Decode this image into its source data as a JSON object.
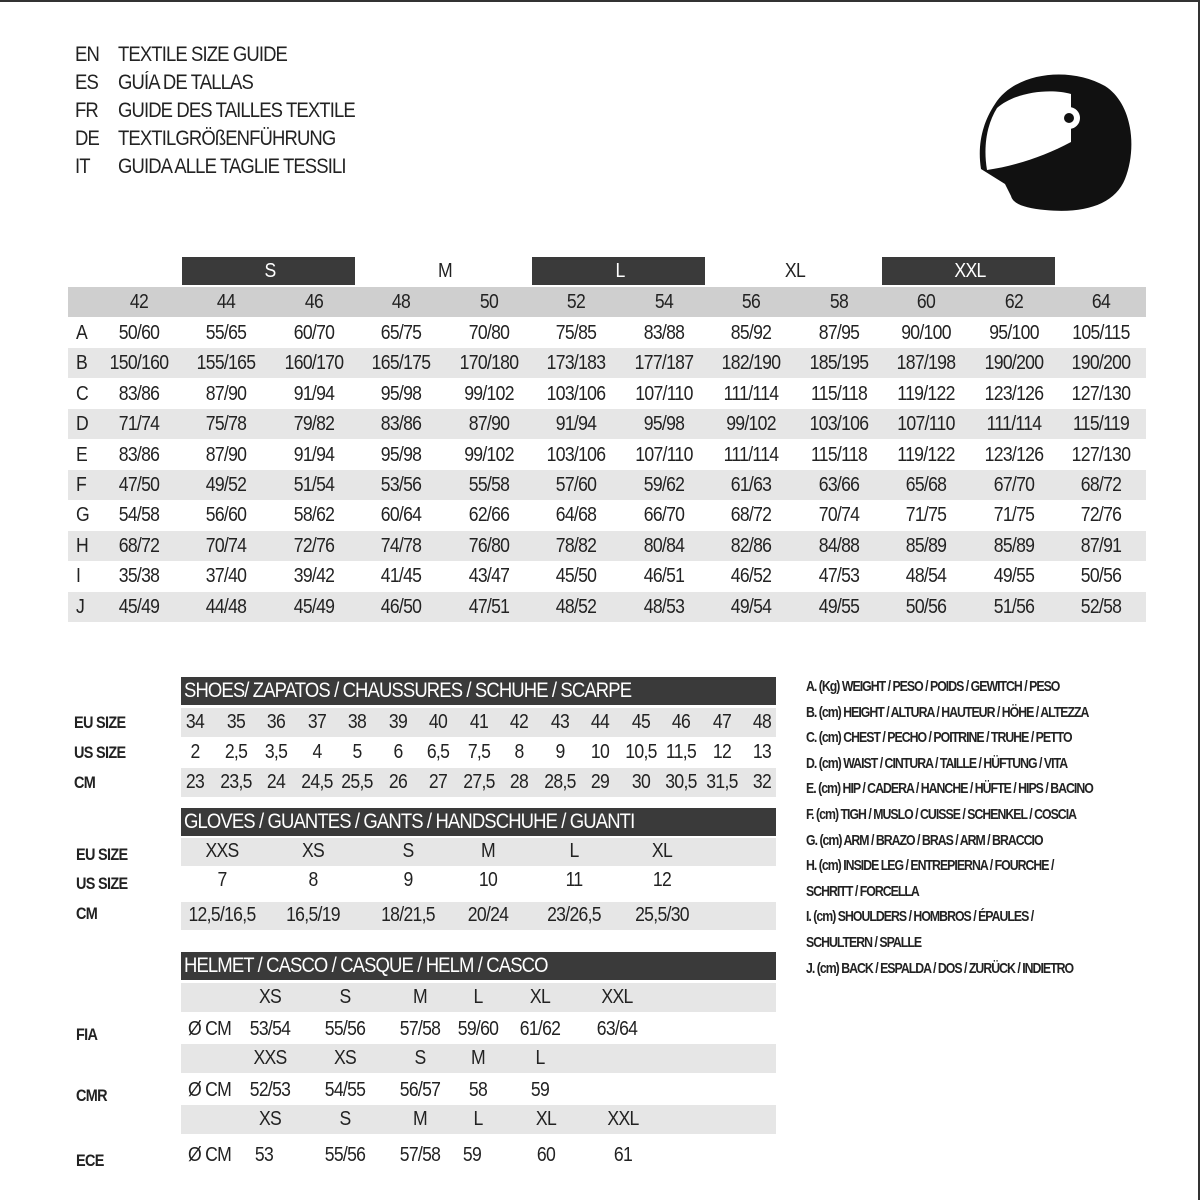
{
  "titles": [
    {
      "lang": "EN",
      "text": "TEXTILE SIZE GUIDE"
    },
    {
      "lang": "ES",
      "text": "GUÍA DE TALLAS"
    },
    {
      "lang": "FR",
      "text": "GUIDE DES TAILLES TEXTILE"
    },
    {
      "lang": "DE",
      "text": "TEXTILGRÖßENFÜHRUNG"
    },
    {
      "lang": "IT",
      "text": "GUIDA ALLE TAGLIE TESSILI"
    }
  ],
  "icon": "helmet-icon",
  "textile": {
    "size_groups": [
      {
        "label": "S",
        "dark": true
      },
      {
        "label": "M",
        "dark": false
      },
      {
        "label": "L",
        "dark": true
      },
      {
        "label": "XL",
        "dark": false
      },
      {
        "label": "XXL",
        "dark": true
      }
    ],
    "numbers": [
      "42",
      "44",
      "46",
      "48",
      "50",
      "52",
      "54",
      "56",
      "58",
      "60",
      "62",
      "64"
    ],
    "rows": [
      {
        "key": "A",
        "values": [
          "50/60",
          "55/65",
          "60/70",
          "65/75",
          "70/80",
          "75/85",
          "83/88",
          "85/92",
          "87/95",
          "90/100",
          "95/100",
          "105/115"
        ]
      },
      {
        "key": "B",
        "values": [
          "150/160",
          "155/165",
          "160/170",
          "165/175",
          "170/180",
          "173/183",
          "177/187",
          "182/190",
          "185/195",
          "187/198",
          "190/200",
          "190/200"
        ]
      },
      {
        "key": "C",
        "values": [
          "83/86",
          "87/90",
          "91/94",
          "95/98",
          "99/102",
          "103/106",
          "107/110",
          "111/114",
          "115/118",
          "119/122",
          "123/126",
          "127/130"
        ]
      },
      {
        "key": "D",
        "values": [
          "71/74",
          "75/78",
          "79/82",
          "83/86",
          "87/90",
          "91/94",
          "95/98",
          "99/102",
          "103/106",
          "107/110",
          "111/114",
          "115/119"
        ]
      },
      {
        "key": "E",
        "values": [
          "83/86",
          "87/90",
          "91/94",
          "95/98",
          "99/102",
          "103/106",
          "107/110",
          "111/114",
          "115/118",
          "119/122",
          "123/126",
          "127/130"
        ]
      },
      {
        "key": "F",
        "values": [
          "47/50",
          "49/52",
          "51/54",
          "53/56",
          "55/58",
          "57/60",
          "59/62",
          "61/63",
          "63/66",
          "65/68",
          "67/70",
          "68/72"
        ]
      },
      {
        "key": "G",
        "values": [
          "54/58",
          "56/60",
          "58/62",
          "60/64",
          "62/66",
          "64/68",
          "66/70",
          "68/72",
          "70/74",
          "71/75",
          "71/75",
          "72/76"
        ]
      },
      {
        "key": "H",
        "values": [
          "68/72",
          "70/74",
          "72/76",
          "74/78",
          "76/80",
          "78/82",
          "80/84",
          "82/86",
          "84/88",
          "85/89",
          "85/89",
          "87/91"
        ]
      },
      {
        "key": "I",
        "values": [
          "35/38",
          "37/40",
          "39/42",
          "41/45",
          "43/47",
          "45/50",
          "46/51",
          "46/52",
          "47/53",
          "48/54",
          "49/55",
          "50/56"
        ]
      },
      {
        "key": "J",
        "values": [
          "45/49",
          "44/48",
          "45/49",
          "46/50",
          "47/51",
          "48/52",
          "48/53",
          "49/54",
          "49/55",
          "50/56",
          "51/56",
          "52/58"
        ]
      }
    ]
  },
  "shoes": {
    "title": "SHOES/ ZAPATOS / CHAUSSURES / SCHUHE / SCARPE",
    "rows": [
      {
        "label": "EU SIZE",
        "values": [
          "34",
          "35",
          "36",
          "37",
          "38",
          "39",
          "40",
          "41",
          "42",
          "43",
          "44",
          "45",
          "46",
          "47",
          "48"
        ]
      },
      {
        "label": "US SIZE",
        "values": [
          "2",
          "2,5",
          "3,5",
          "4",
          "5",
          "6",
          "6,5",
          "7,5",
          "8",
          "9",
          "10",
          "10,5",
          "11,5",
          "12",
          "13"
        ]
      },
      {
        "label": "CM",
        "values": [
          "23",
          "23,5",
          "24",
          "24,5",
          "25,5",
          "26",
          "27",
          "27,5",
          "28",
          "28,5",
          "29",
          "30",
          "30,5",
          "31,5",
          "32"
        ]
      }
    ]
  },
  "gloves": {
    "title": "GLOVES / GUANTES / GANTS / HANDSCHUHE / GUANTI",
    "rows": [
      {
        "label": "EU SIZE",
        "values": [
          "XXS",
          "XS",
          "S",
          "M",
          "L",
          "XL"
        ]
      },
      {
        "label": "US SIZE",
        "values": [
          "7",
          "8",
          "9",
          "10",
          "11",
          "12"
        ]
      },
      {
        "label": "CM",
        "values": [
          "12,5/16,5",
          "16,5/19",
          "18/21,5",
          "20/24",
          "23/26,5",
          "25,5/30"
        ]
      }
    ]
  },
  "helmet": {
    "title": "HELMET / CASCO / CASQUE / HELM / CASCO",
    "unit": "Ø CM",
    "standards": [
      {
        "label": "FIA",
        "sizes": [
          "XS",
          "S",
          "M",
          "L",
          "XL",
          "XXL"
        ],
        "values": [
          "53/54",
          "55/56",
          "57/58",
          "59/60",
          "61/62",
          "63/64"
        ]
      },
      {
        "label": "CMR",
        "sizes": [
          "XXS",
          "XS",
          "S",
          "M",
          "L"
        ],
        "values": [
          "52/53",
          "54/55",
          "56/57",
          "58",
          "59"
        ]
      },
      {
        "label": "ECE",
        "sizes": [
          "XS",
          "S",
          "M",
          "L",
          "XL",
          "XXL"
        ],
        "values": [
          "53",
          "55/56",
          "57/58",
          "59",
          "60",
          "61"
        ]
      }
    ]
  },
  "legend": [
    "A. (Kg) WEIGHT / PESO / POIDS / GEWITCH / PESO",
    "B. (cm) HEIGHT / ALTURA / HAUTEUR / HÖHE / ALTEZZA",
    "C. (cm) CHEST / PECHO / POITRINE / TRUHE / PETTO",
    "D. (cm) WAIST / CINTURA / TAILLE / HÜFTUNG / VITA",
    "E. (cm) HIP / CADERA / HANCHE / HÜFTE / HIPS /  BACINO",
    "F.  (cm) TIGH / MUSLO / CUISSE / SCHENKEL / COSCIA",
    "G. (cm) ARM  / BRAZO / BRAS / ARM / BRACCIO",
    "H. (cm) INSIDE LEG / ENTREPIERNA / FOURCHE /",
    "SCHRITT / FORCELLA",
    "I.  (cm) SHOULDERS / HOMBROS / ÉPAULES /",
    "SCHULTERN / SPALLE",
    "J. (cm) BACK / ESPALDA / DOS / ZURÜCK / INDIETRO"
  ]
}
